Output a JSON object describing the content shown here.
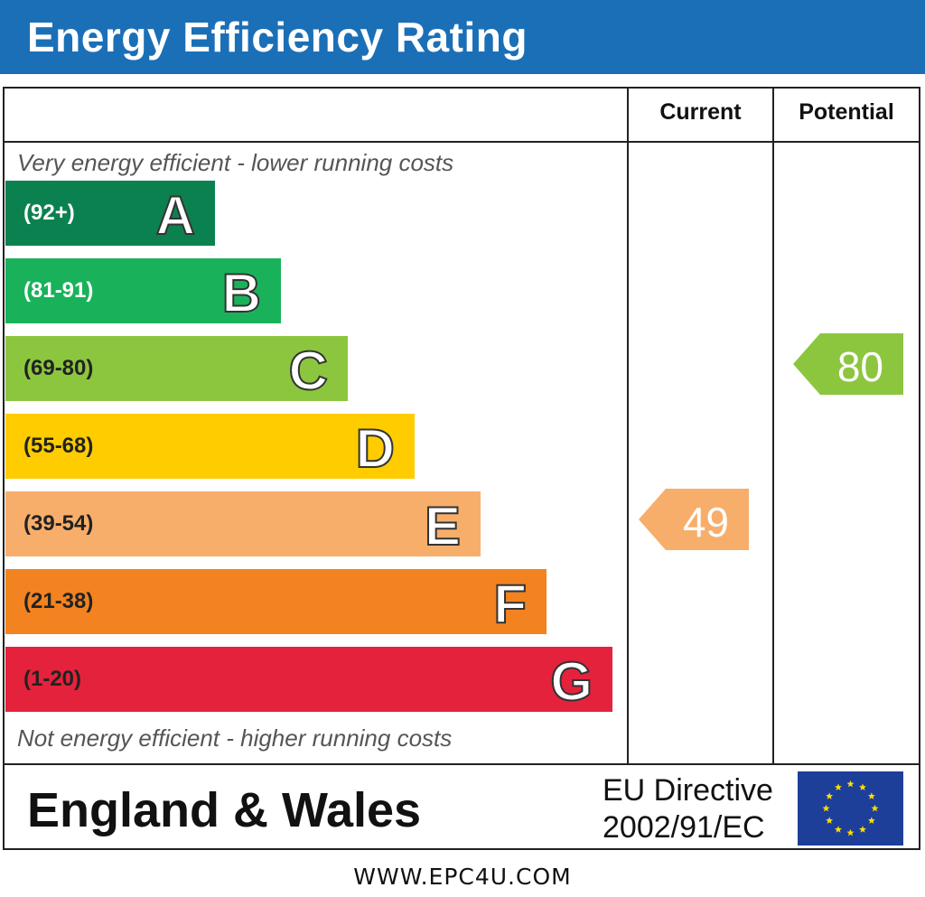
{
  "header": {
    "title": "Energy Efficiency Rating"
  },
  "columns": {
    "current": "Current",
    "potential": "Potential"
  },
  "notes": {
    "top": "Very energy efficient - lower running costs",
    "bottom": "Not energy efficient - higher running costs"
  },
  "chart_data": {
    "type": "bar",
    "title": "Energy Efficiency Rating",
    "categories": [
      "A",
      "B",
      "C",
      "D",
      "E",
      "F",
      "G"
    ],
    "bands": [
      {
        "letter": "A",
        "range": "(92+)",
        "color": "#0c8150",
        "text_color": "#ffffff"
      },
      {
        "letter": "B",
        "range": "(81-91)",
        "color": "#19b25a",
        "text_color": "#ffffff"
      },
      {
        "letter": "C",
        "range": "(69-80)",
        "color": "#8cc63f",
        "text_color": "#222222"
      },
      {
        "letter": "D",
        "range": "(55-68)",
        "color": "#ffcc00",
        "text_color": "#222222"
      },
      {
        "letter": "E",
        "range": "(39-54)",
        "color": "#f7ae6b",
        "text_color": "#222222"
      },
      {
        "letter": "F",
        "range": "(21-38)",
        "color": "#f28320",
        "text_color": "#222222"
      },
      {
        "letter": "G",
        "range": "(1-20)",
        "color": "#e4223c",
        "text_color": "#222222"
      }
    ],
    "current": {
      "value": 49,
      "band": "E",
      "color": "#f7ae6b"
    },
    "potential": {
      "value": 80,
      "band": "C",
      "color": "#8cc63f"
    }
  },
  "footer": {
    "region": "England & Wales",
    "directive_line1": "EU Directive",
    "directive_line2": "2002/91/EC",
    "url": "WWW.EPC4U.COM"
  },
  "flag": {
    "background": "#1d3f9a",
    "stars": "#ffdd00"
  }
}
